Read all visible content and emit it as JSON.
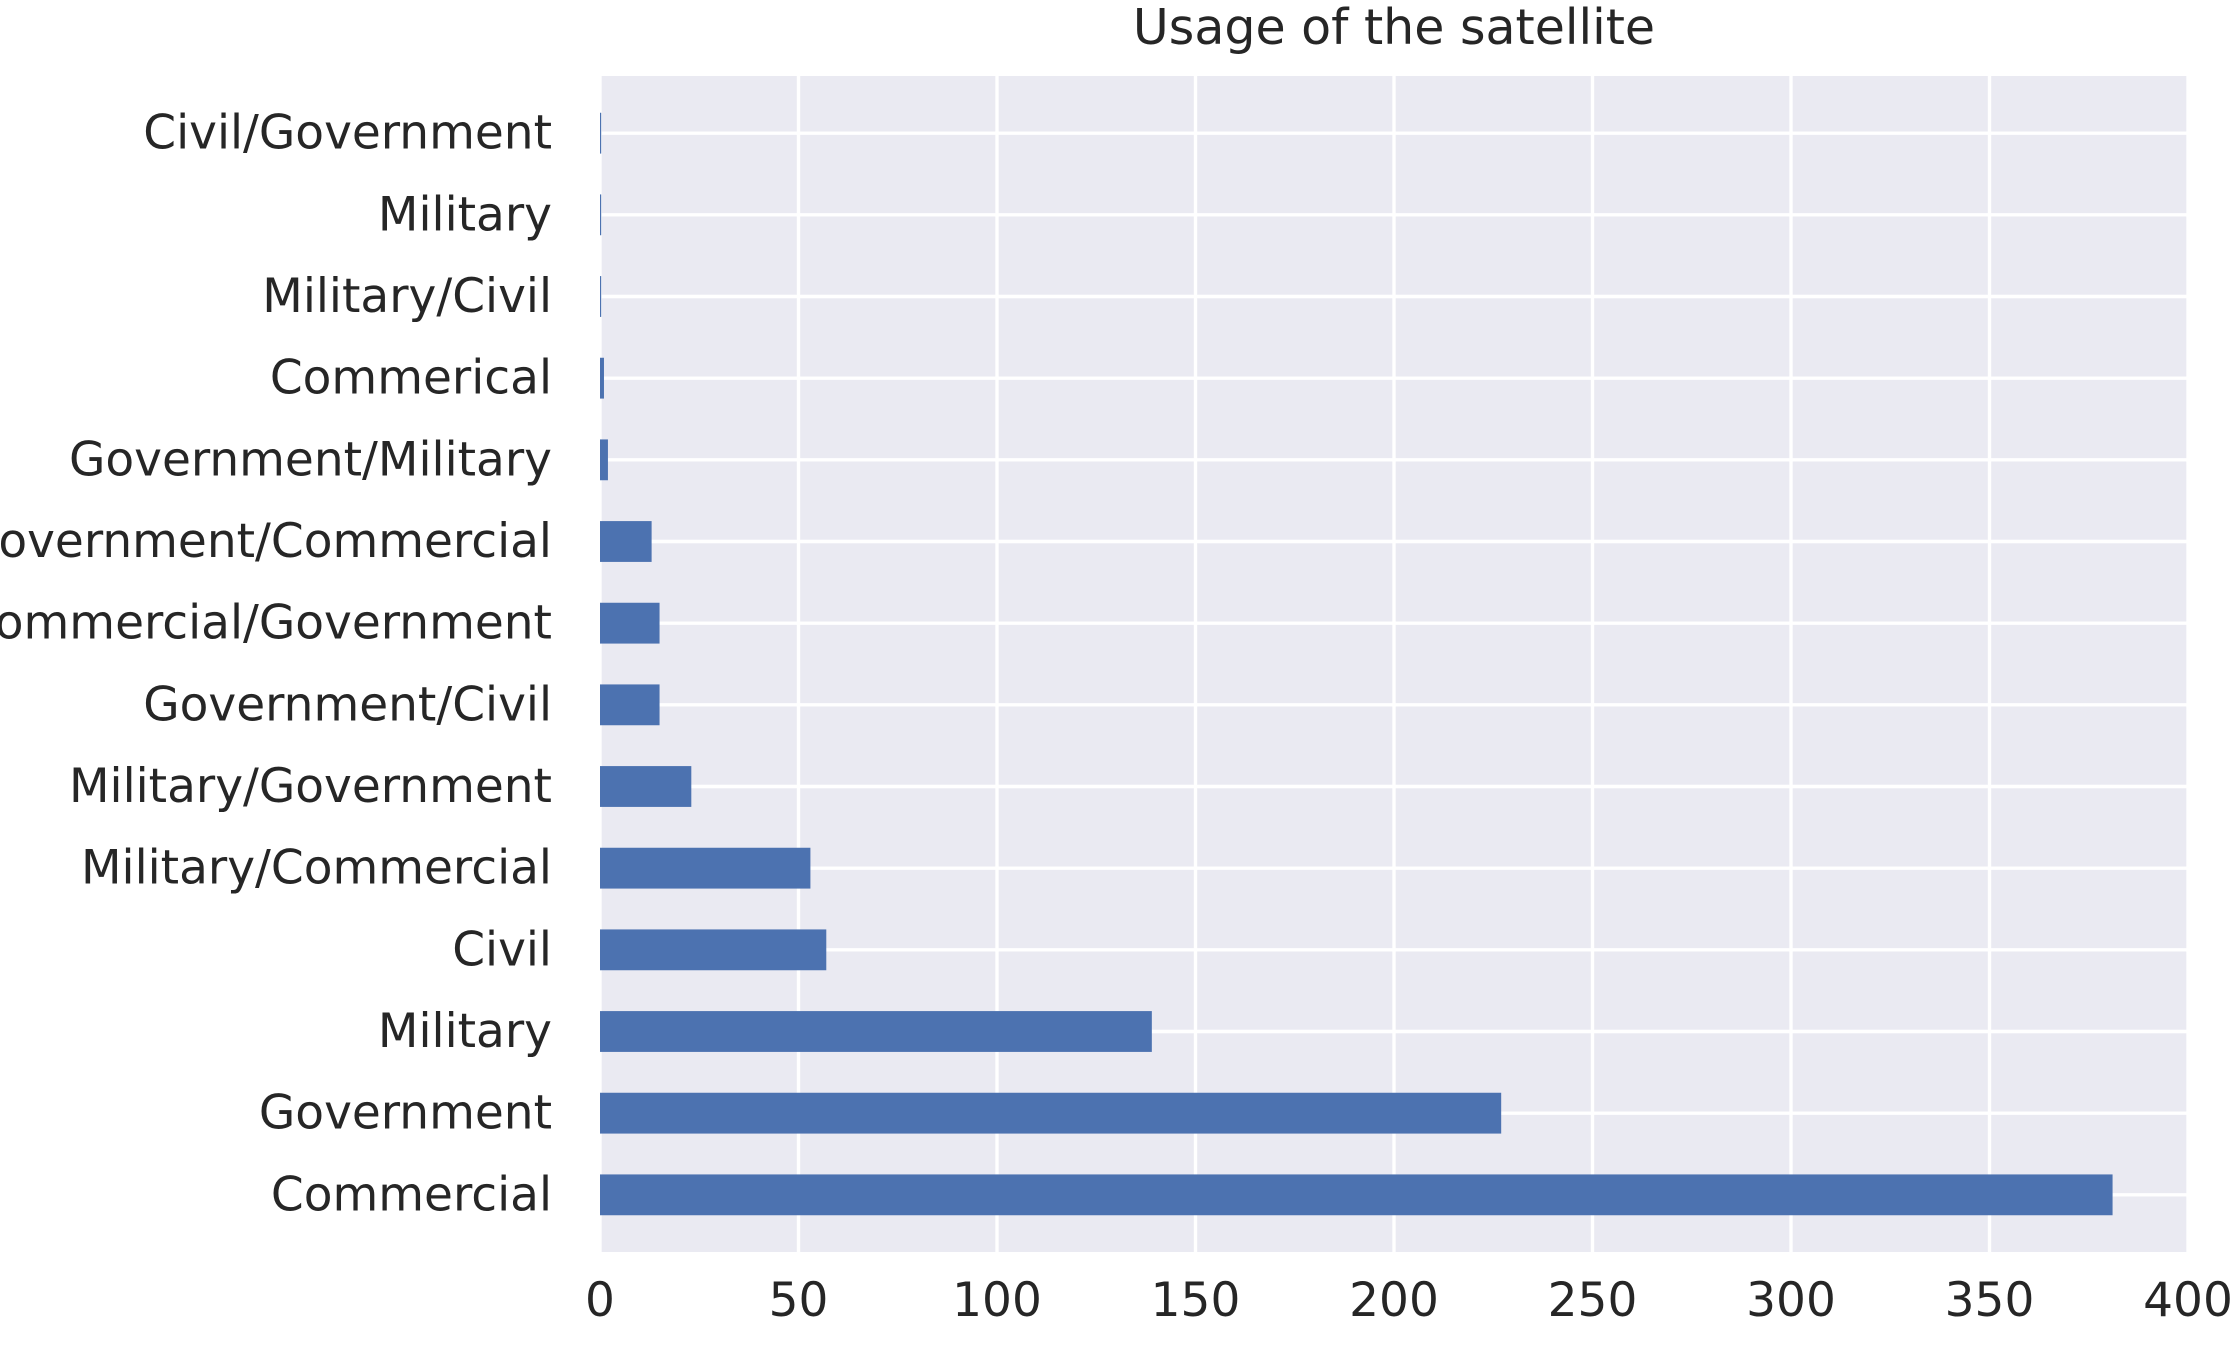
{
  "chart_data": {
    "type": "bar",
    "orientation": "horizontal",
    "title": "Usage of the satellite",
    "xlabel": "",
    "ylabel": "",
    "categories": [
      "Civil/Government",
      "Military ",
      "Military/Civil",
      "Commerical",
      "Government/Military",
      "Government/Commercial",
      "Commercial/Government",
      "Government/Civil",
      "Military/Government",
      "Military/Commercial",
      "Civil",
      "Military",
      "Government",
      "Commercial"
    ],
    "values": [
      0.3,
      0.3,
      0.3,
      1,
      2,
      13,
      15,
      15,
      23,
      53,
      57,
      139,
      227,
      381
    ],
    "xlim": [
      0,
      400
    ],
    "xticks": [
      "0",
      "50",
      "100",
      "150",
      "200",
      "250",
      "300",
      "350",
      "400"
    ],
    "grid": true,
    "bar_color": "#4c72b0",
    "background_color": "#eaeaf2",
    "grid_color": "#ffffff"
  }
}
